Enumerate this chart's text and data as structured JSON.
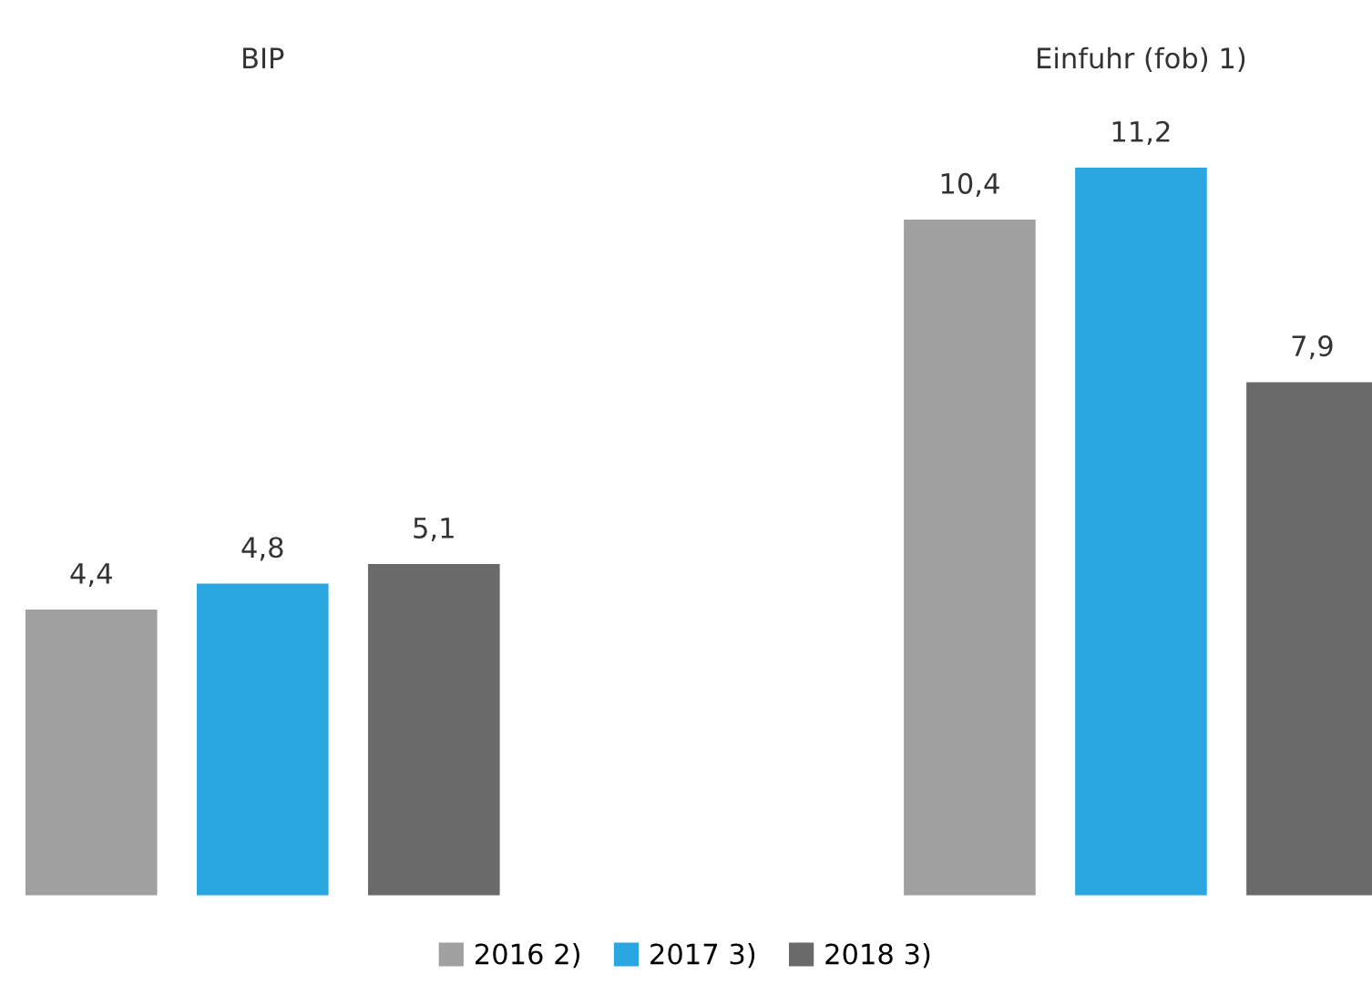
{
  "chart_data": {
    "type": "bar",
    "categories": [
      "BIP",
      "Einfuhr (fob) 1)"
    ],
    "series": [
      {
        "name": "2016 2)",
        "color": "#a0a0a0",
        "values": [
          4.4,
          10.4
        ],
        "value_labels": [
          "4,4",
          "10,4"
        ]
      },
      {
        "name": "2017 3)",
        "color": "#2aa7e1",
        "values": [
          4.8,
          11.2
        ],
        "value_labels": [
          "4,8",
          "11,2"
        ]
      },
      {
        "name": "2018 3)",
        "color": "#6a6a6a",
        "values": [
          5.1,
          7.9
        ],
        "value_labels": [
          "5,1",
          "7,9"
        ]
      }
    ],
    "legend": "bottom",
    "grid": false
  }
}
